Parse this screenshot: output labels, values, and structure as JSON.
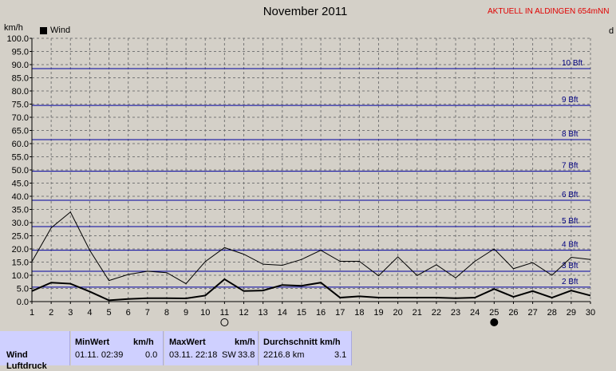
{
  "header": {
    "title": "November 2011",
    "station": "AKTUELL IN ALDINGEN 654mNN",
    "edge_letter": "d"
  },
  "chart_data": {
    "type": "line",
    "title": "November 2011",
    "ylabel": "km/h",
    "ylim": [
      0,
      100
    ],
    "y_tick_step": 5,
    "x": [
      1,
      2,
      3,
      4,
      5,
      6,
      7,
      8,
      9,
      10,
      11,
      12,
      13,
      14,
      15,
      16,
      17,
      18,
      19,
      20,
      21,
      22,
      23,
      24,
      25,
      26,
      27,
      28,
      29,
      30
    ],
    "legend": {
      "label": "Wind",
      "color": "#000000",
      "placement": "top-left"
    },
    "grid": true,
    "series": [
      {
        "id": "gust",
        "values": [
          15.2,
          28.0,
          34.0,
          19.5,
          8.0,
          10.3,
          11.5,
          11.0,
          6.8,
          15.2,
          20.5,
          18.0,
          14.2,
          13.8,
          16.0,
          19.5,
          15.3,
          15.3,
          9.8,
          17.0,
          9.9,
          14.0,
          9.0,
          15.3,
          20.0,
          12.5,
          14.8,
          10.0,
          16.8,
          16.0
        ]
      },
      {
        "id": "mean",
        "values": [
          4.0,
          7.2,
          6.8,
          3.8,
          0.5,
          1.0,
          1.3,
          1.3,
          1.2,
          2.3,
          8.5,
          4.0,
          4.2,
          6.3,
          6.0,
          7.2,
          1.5,
          2.0,
          1.5,
          1.5,
          1.5,
          1.5,
          1.3,
          1.5,
          4.8,
          1.8,
          4.0,
          1.5,
          4.2,
          2.3
        ]
      }
    ],
    "beaufort_lines": [
      {
        "label": "2 Bft",
        "value": 5.5
      },
      {
        "label": "3 Bft",
        "value": 11.5
      },
      {
        "label": "4 Bft",
        "value": 19.5
      },
      {
        "label": "5 Bft",
        "value": 28.5
      },
      {
        "label": "6 Bft",
        "value": 38.5
      },
      {
        "label": "7 Bft",
        "value": 49.5
      },
      {
        "label": "8 Bft",
        "value": 61.5
      },
      {
        "label": "9 Bft",
        "value": 74.5
      },
      {
        "label": "10 Bft",
        "value": 88.5
      }
    ],
    "moon_markers": [
      {
        "day": 11,
        "phase": "full"
      },
      {
        "day": 25,
        "phase": "new"
      }
    ]
  },
  "stats": {
    "row_label": "Wind",
    "row_label_2": "Luftdruck",
    "min": {
      "header": "MinWert",
      "unit": "km/h",
      "date": "01.11.  02:39",
      "value": "0.0"
    },
    "max": {
      "header": "MaxWert",
      "unit": "km/h",
      "date": "03.11.  22:18",
      "dir": "SW",
      "value": "33.8"
    },
    "avg": {
      "header": "Durchschnitt km/h",
      "distance": "2216.8 km",
      "value": "3.1"
    }
  }
}
